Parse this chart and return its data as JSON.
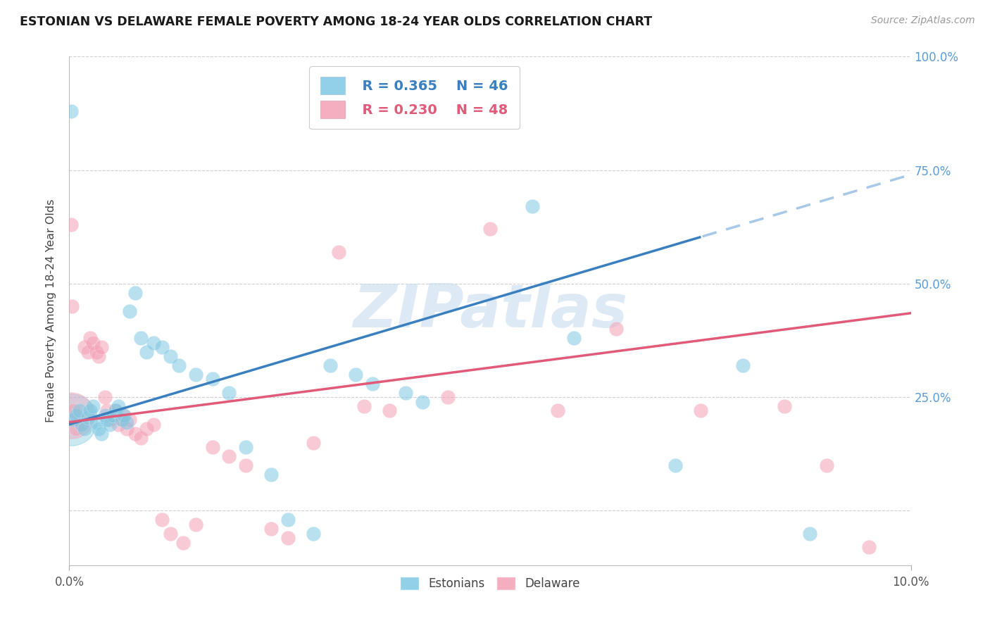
{
  "title": "ESTONIAN VS DELAWARE FEMALE POVERTY AMONG 18-24 YEAR OLDS CORRELATION CHART",
  "source": "Source: ZipAtlas.com",
  "ylabel": "Female Poverty Among 18-24 Year Olds",
  "xmin": 0.0,
  "xmax": 10.0,
  "ymin": -12.0,
  "ymax": 100.0,
  "color_estonian": "#7ec8e3",
  "color_delaware": "#f4a0b5",
  "color_estonian_line": "#3a7fbf",
  "color_delaware_line": "#e05a7a",
  "color_estonian_dash": "#a8c8e8",
  "legend_r_estonian": "R = 0.365",
  "legend_n_estonian": "N = 46",
  "legend_r_delaware": "R = 0.230",
  "legend_n_delaware": "N = 48",
  "background_color": "#ffffff",
  "grid_color": "#d0d0d0",
  "right_axis_color": "#5b9bd5",
  "watermark_color": "#ccdff0",
  "title_color": "#1a1a1a",
  "source_color": "#999999",
  "ytick_right_vals": [
    25,
    50,
    75,
    100
  ],
  "ytick_right_labels": [
    "25.0%",
    "50.0%",
    "75.0%",
    "100.0%"
  ],
  "est_x": [
    0.05,
    0.08,
    0.12,
    0.15,
    0.18,
    0.22,
    0.25,
    0.28,
    0.32,
    0.35,
    0.38,
    0.42,
    0.45,
    0.48,
    0.52,
    0.55,
    0.58,
    0.62,
    0.65,
    0.68,
    0.72,
    0.78,
    0.85,
    0.92,
    1.0,
    1.1,
    1.2,
    1.3,
    1.5,
    1.7,
    1.9,
    2.1,
    2.4,
    2.6,
    2.9,
    3.1,
    3.4,
    3.6,
    4.0,
    4.2,
    5.5,
    6.0,
    7.2,
    8.0,
    8.8,
    0.02
  ],
  "est_y": [
    20.0,
    21.0,
    22.0,
    19.0,
    18.0,
    20.5,
    22.0,
    23.0,
    19.5,
    18.0,
    17.0,
    21.0,
    20.0,
    19.0,
    21.0,
    22.0,
    23.0,
    20.0,
    21.0,
    19.5,
    44.0,
    48.0,
    38.0,
    35.0,
    37.0,
    36.0,
    34.0,
    32.0,
    30.0,
    29.0,
    26.0,
    14.0,
    8.0,
    -2.0,
    -5.0,
    32.0,
    30.0,
    28.0,
    26.0,
    24.0,
    67.0,
    38.0,
    10.0,
    32.0,
    -5.0,
    88.0
  ],
  "del_x": [
    0.05,
    0.08,
    0.12,
    0.15,
    0.18,
    0.22,
    0.25,
    0.28,
    0.32,
    0.35,
    0.38,
    0.42,
    0.45,
    0.48,
    0.52,
    0.55,
    0.58,
    0.62,
    0.65,
    0.68,
    0.72,
    0.78,
    0.85,
    0.92,
    1.0,
    1.1,
    1.2,
    1.35,
    1.5,
    1.7,
    1.9,
    2.1,
    2.4,
    2.6,
    2.9,
    3.2,
    3.5,
    3.8,
    4.5,
    5.0,
    5.8,
    6.5,
    7.5,
    8.5,
    9.0,
    9.5,
    0.02,
    0.03
  ],
  "del_y": [
    22.0,
    18.0,
    20.0,
    19.0,
    36.0,
    35.0,
    38.0,
    37.0,
    35.0,
    34.0,
    36.0,
    25.0,
    22.0,
    20.0,
    21.0,
    22.0,
    19.0,
    20.0,
    21.0,
    18.0,
    20.0,
    17.0,
    16.0,
    18.0,
    19.0,
    -2.0,
    -5.0,
    -7.0,
    -3.0,
    14.0,
    12.0,
    10.0,
    -4.0,
    -6.0,
    15.0,
    57.0,
    23.0,
    22.0,
    25.0,
    62.0,
    22.0,
    40.0,
    22.0,
    23.0,
    10.0,
    -8.0,
    63.0,
    45.0
  ]
}
